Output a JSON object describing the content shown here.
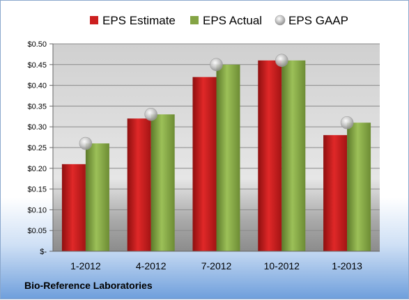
{
  "footer": {
    "company": "Bio-Reference Laboratories"
  },
  "colors": {
    "estimate": "#cc1f1f",
    "actual": "#84a444",
    "gaap": "#c8c8c8"
  },
  "chart_data": {
    "type": "bar",
    "title": "",
    "xlabel": "",
    "ylabel": "",
    "categories": [
      "1-2012",
      "4-2012",
      "7-2012",
      "10-2012",
      "1-2013"
    ],
    "series": [
      {
        "name": "EPS Estimate",
        "marker": "bar",
        "values": [
          0.21,
          0.32,
          0.42,
          0.46,
          0.28
        ]
      },
      {
        "name": "EPS Actual",
        "marker": "bar",
        "values": [
          0.26,
          0.33,
          0.45,
          0.46,
          0.31
        ]
      },
      {
        "name": "EPS GAAP",
        "marker": "circle",
        "values": [
          0.26,
          0.33,
          0.45,
          0.46,
          0.31
        ]
      }
    ],
    "ylim": [
      0,
      0.5
    ],
    "yticks": [
      0,
      0.05,
      0.1,
      0.15,
      0.2,
      0.25,
      0.3,
      0.35,
      0.4,
      0.45,
      0.5
    ],
    "ytick_labels": [
      "$-",
      "$0.05",
      "$0.10",
      "$0.15",
      "$0.20",
      "$0.25",
      "$0.30",
      "$0.35",
      "$0.40",
      "$0.45",
      "$0.50"
    ],
    "grid": true,
    "legend": "top"
  }
}
